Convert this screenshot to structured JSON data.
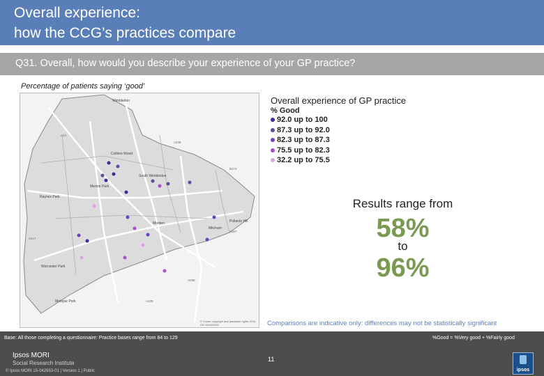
{
  "header": {
    "title": "Overall experience:\nhow the CCG’s practices compare"
  },
  "question": {
    "text": "Q31. Overall, how would you describe your experience of your GP practice?"
  },
  "subtitle": "Percentage of patients saying ‘good’",
  "map": {
    "copyright": "© Crown copyright and database rights 2015 OS 100022432",
    "place_labels": [
      "Wimbledon",
      "Morden",
      "Mitcham",
      "Raynes Park",
      "Colliers Wood",
      "Merton Park",
      "Motspur Park",
      "Pollards Hill",
      "South Wimbledon",
      "Worcester Park"
    ],
    "road_labels": [
      "A24",
      "A297",
      "A217",
      "A236",
      "A239",
      "B272",
      "A298"
    ],
    "practices": [
      {
        "band": 1
      },
      {
        "band": 1
      },
      {
        "band": 1
      },
      {
        "band": 1
      },
      {
        "band": 1
      },
      {
        "band": 2
      },
      {
        "band": 2
      },
      {
        "band": 2
      },
      {
        "band": 2
      },
      {
        "band": 2
      },
      {
        "band": 3
      },
      {
        "band": 3
      },
      {
        "band": 3
      },
      {
        "band": 3
      },
      {
        "band": 3
      },
      {
        "band": 4
      },
      {
        "band": 4
      },
      {
        "band": 4
      },
      {
        "band": 4
      },
      {
        "band": 5
      },
      {
        "band": 5
      },
      {
        "band": 5
      }
    ]
  },
  "legend": {
    "title": "Overall experience of GP practice",
    "subtitle": "% Good",
    "items": [
      {
        "label": "92.0 up to 100",
        "color": "#3d2a9c"
      },
      {
        "label": "87.3 up to 92.0",
        "color": "#5a4f9e"
      },
      {
        "label": "82.3 up to 87.3",
        "color": "#6b3fc4"
      },
      {
        "label": "75.5 up to 82.3",
        "color": "#a64fd0"
      },
      {
        "label": "32.2 up to 75.5",
        "color": "#d6a6dc"
      }
    ]
  },
  "results": {
    "intro": "Results range from",
    "low": "58%",
    "to": "to",
    "high": "96%",
    "accent_color": "#7a9a52"
  },
  "comparisons_note": "Comparisons are indicative only: differences may not be statistically significant",
  "footer": {
    "base": "Base: All those completing a questionnaire: Practice bases range from 84 to 129",
    "definition": "%Good = %Very good + %Fairly good",
    "page_number": "11",
    "logo_line1": "Ipsos MORI",
    "logo_line2": "Social Research Institute",
    "meta": "© Ipsos MORI     15-042653-01 | Version 1 | Public",
    "badge_label": "ipsos"
  }
}
